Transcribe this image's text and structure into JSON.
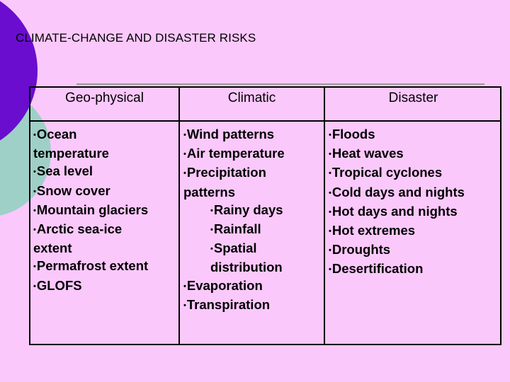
{
  "title": "CLIMATE-CHANGE AND DISASTER RISKS",
  "colors": {
    "background": "#fbc8fb",
    "accent_purple": "#6a0dcf",
    "accent_teal": "#9fd0c8"
  },
  "headers": [
    "Geo-physical",
    "Climatic",
    "Disaster"
  ],
  "geophysical": [
    {
      "bullet": "•",
      "text": "Ocean"
    },
    {
      "bullet": "",
      "text": "temperature"
    },
    {
      "bullet": "•",
      "text": "Sea level"
    },
    {
      "bullet": "•",
      "text": "Snow cover"
    },
    {
      "bullet": "•",
      "text": "Mountain glaciers"
    },
    {
      "bullet": "•",
      "text": "Arctic sea-ice"
    },
    {
      "bullet": "",
      "text": "extent"
    },
    {
      "bullet": "•",
      "text": "Permafrost extent"
    },
    {
      "bullet": "•",
      "text": "GLOFS"
    }
  ],
  "climatic": [
    {
      "bullet": "•",
      "text": "Wind patterns"
    },
    {
      "bullet": "•",
      "text": "Air temperature"
    },
    {
      "bullet": "•",
      "text": "Precipitation"
    },
    {
      "bullet": "",
      "text": "patterns"
    },
    {
      "bullet": "•",
      "text": "Rainy days",
      "sub": true
    },
    {
      "bullet": "•",
      "text": "Rainfall",
      "sub": true
    },
    {
      "bullet": "•",
      "text": "Spatial",
      "sub": true
    },
    {
      "bullet": "",
      "text": "distribution",
      "sub": true
    },
    {
      "bullet": "•",
      "text": "Evaporation"
    },
    {
      "bullet": "•",
      "text": "Transpiration"
    }
  ],
  "disaster": [
    {
      "bullet": "•",
      "text": "Floods"
    },
    {
      "bullet": "•",
      "text": "Heat waves"
    },
    {
      "bullet": "•",
      "text": "Tropical cyclones"
    },
    {
      "bullet": "•",
      "text": "Cold days and nights"
    },
    {
      "bullet": "•",
      "text": "Hot days and nights"
    },
    {
      "bullet": "•",
      "text": "Hot extremes"
    },
    {
      "bullet": "•",
      "text": "Droughts"
    },
    {
      "bullet": "•",
      "text": "Desertification"
    }
  ]
}
